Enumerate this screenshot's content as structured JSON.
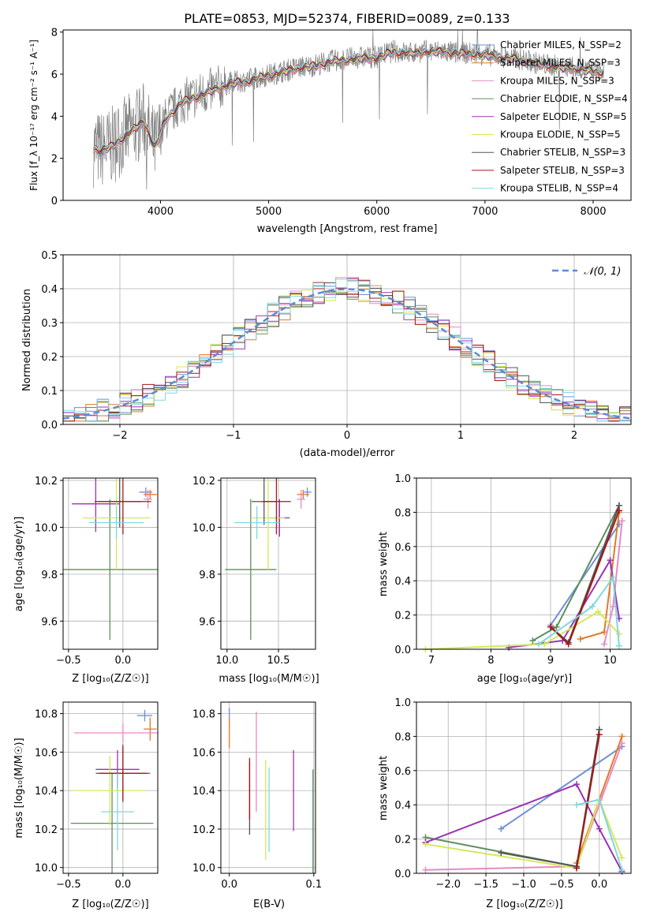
{
  "chart_data": [
    {
      "id": "spectrum",
      "type": "line",
      "title": "PLATE=0853, MJD=52374, FIBERID=0089, z=0.133",
      "xlabel": "wavelength [Angstrom, rest frame]",
      "ylabel": "Flux [f_λ 10⁻¹⁷ erg cm⁻² s⁻¹ A⁻¹]",
      "xlim": [
        3100,
        8350
      ],
      "ylim": [
        0,
        8.1
      ],
      "xticks": [
        4000,
        5000,
        6000,
        7000,
        8000
      ],
      "yticks": [
        0,
        2,
        4,
        6,
        8
      ],
      "legend_position": "upper-right",
      "observed_points": [
        [
          3380,
          2.5
        ],
        [
          3450,
          2.4
        ],
        [
          3550,
          2.6
        ],
        [
          3650,
          3.0
        ],
        [
          3750,
          3.4
        ],
        [
          3850,
          3.8
        ],
        [
          3950,
          2.5
        ],
        [
          4050,
          3.9
        ],
        [
          4200,
          4.7
        ],
        [
          4350,
          5.0
        ],
        [
          4500,
          5.3
        ],
        [
          4650,
          5.6
        ],
        [
          4800,
          5.7
        ],
        [
          4950,
          5.9
        ],
        [
          5100,
          6.1
        ],
        [
          5250,
          6.3
        ],
        [
          5400,
          6.4
        ],
        [
          5550,
          6.6
        ],
        [
          5700,
          6.7
        ],
        [
          5850,
          6.8
        ],
        [
          6000,
          6.8
        ],
        [
          6150,
          7.1
        ],
        [
          6300,
          7.0
        ],
        [
          6450,
          7.1
        ],
        [
          6600,
          7.1
        ],
        [
          6750,
          7.0
        ],
        [
          6900,
          7.0
        ],
        [
          7050,
          6.9
        ],
        [
          7200,
          6.8
        ],
        [
          7350,
          6.7
        ],
        [
          7500,
          6.5
        ],
        [
          7650,
          6.4
        ],
        [
          7800,
          6.3
        ],
        [
          7950,
          6.2
        ],
        [
          8100,
          6.1
        ]
      ],
      "legend": [
        "Chabrier MILES, N_SSP=2",
        "Salpeter MILES, N_SSP=3",
        "Kroupa MILES, N_SSP=3",
        "Chabrier ELODIE, N_SSP=4",
        "Salpeter ELODIE, N_SSP=5",
        "Kroupa ELODIE, N_SSP=5",
        "Chabrier STELIB, N_SSP=3",
        "Salpeter STELIB, N_SSP=3",
        "Kroupa STELIB, N_SSP=4"
      ]
    },
    {
      "id": "residuals",
      "type": "area",
      "xlabel": "(data-model)/error",
      "ylabel": "Normed distribution",
      "xlim": [
        -2.5,
        2.5
      ],
      "ylim": [
        0,
        0.5
      ],
      "xticks": [
        -2,
        -1,
        0,
        1,
        2
      ],
      "xtick_labels": [
        "−2",
        "−1",
        "0",
        "1",
        "2"
      ],
      "yticks": [
        0.0,
        0.1,
        0.2,
        0.3,
        0.4,
        0.5
      ],
      "ytick_labels": [
        "0.0",
        "0.1",
        "0.2",
        "0.3",
        "0.4",
        "0.5"
      ],
      "grid": true,
      "legend_label": "𝒩(0, 1)",
      "legend_position": "upper-right"
    },
    {
      "id": "age_vs_Z",
      "type": "scatter",
      "xlabel": "Z [log₁₀(Z/Z☉)]",
      "ylabel": "age  [log₁₀(age/yr)]",
      "xlim": [
        -0.55,
        0.32
      ],
      "ylim": [
        9.48,
        10.21
      ],
      "xticks": [
        -0.5,
        0.0
      ],
      "xtick_labels": [
        "−0.5",
        "0.0"
      ],
      "yticks": [
        9.6,
        9.8,
        10.0,
        10.2
      ],
      "ytick_labels": [
        "9.6",
        "9.8",
        "10.0",
        "10.2"
      ],
      "points": [
        {
          "x": 0.21,
          "y": 10.15,
          "xe": 0.06,
          "ye": 0.02
        },
        {
          "x": 0.25,
          "y": 10.14,
          "xe": 0.06,
          "ye": 0.02
        },
        {
          "x": 0.23,
          "y": 10.12,
          "xe": 0.04,
          "ye": 0.04
        },
        {
          "x": -0.12,
          "y": 9.82,
          "xe": 0.45,
          "ye": 0.3
        },
        {
          "x": -0.25,
          "y": 10.1,
          "xe": 0.22,
          "ye": 0.12
        },
        {
          "x": -0.06,
          "y": 10.04,
          "xe": 0.31,
          "ye": 0.22
        },
        {
          "x": -0.03,
          "y": 10.11,
          "xe": 0.2,
          "ye": 0.11
        },
        {
          "x": 0.0,
          "y": 10.11,
          "xe": 0.26,
          "ye": 0.14
        },
        {
          "x": -0.06,
          "y": 10.02,
          "xe": 0.25,
          "ye": 0.07
        }
      ]
    },
    {
      "id": "age_vs_mass",
      "type": "scatter",
      "xlabel": "mass [log₁₀(M/M☉)]",
      "xlim": [
        9.94,
        10.86
      ],
      "ylim": [
        9.48,
        10.21
      ],
      "xticks": [
        10.0,
        10.5
      ],
      "xtick_labels": [
        "10.0",
        "10.5"
      ],
      "yticks": [
        9.6,
        9.8,
        10.0,
        10.2
      ],
      "ytick_labels": [
        "9.6",
        "9.8",
        "10.0",
        "10.2"
      ],
      "points": [
        {
          "x": 10.78,
          "y": 10.15,
          "xe": 0.04,
          "ye": 0.02
        },
        {
          "x": 10.74,
          "y": 10.14,
          "xe": 0.06,
          "ye": 0.02
        },
        {
          "x": 10.72,
          "y": 10.12,
          "xe": 0.04,
          "ye": 0.04
        },
        {
          "x": 10.23,
          "y": 9.82,
          "xe": 0.25,
          "ye": 0.3
        },
        {
          "x": 10.51,
          "y": 10.04,
          "xe": 0.1,
          "ye": 0.08
        },
        {
          "x": 10.4,
          "y": 10.04,
          "xe": 0.16,
          "ye": 0.22
        },
        {
          "x": 10.36,
          "y": 10.11,
          "xe": 0.12,
          "ye": 0.1
        },
        {
          "x": 10.48,
          "y": 10.11,
          "xe": 0.14,
          "ye": 0.14
        },
        {
          "x": 10.29,
          "y": 10.02,
          "xe": 0.22,
          "ye": 0.07
        }
      ]
    },
    {
      "id": "weight_vs_age",
      "type": "line",
      "ylabel": "mass weight",
      "xlabel": "age  [log₁₀(age/yr)]",
      "xlim": [
        6.75,
        10.35
      ],
      "ylim": [
        0,
        1.0
      ],
      "xticks": [
        7,
        8,
        9,
        10
      ],
      "xtick_labels": [
        "7",
        "8",
        "9",
        "10"
      ],
      "yticks": [
        0.0,
        0.2,
        0.4,
        0.6,
        0.8,
        1.0
      ],
      "ytick_labels": [
        "0.0",
        "0.2",
        "0.4",
        "0.6",
        "0.8",
        "1.0"
      ],
      "grid": true
    },
    {
      "id": "mass_vs_Z",
      "type": "scatter",
      "xlabel": "Z [log₁₀(Z/Z☉)]",
      "ylabel": "mass [log₁₀(M/M☉)]",
      "xlim": [
        -0.55,
        0.32
      ],
      "ylim": [
        9.97,
        10.86
      ],
      "xticks": [
        -0.5,
        0.0
      ],
      "xtick_labels": [
        "−0.5",
        "0.0"
      ],
      "yticks": [
        10.0,
        10.2,
        10.4,
        10.6,
        10.8
      ],
      "ytick_labels": [
        "10.0",
        "10.2",
        "10.4",
        "10.6",
        "10.8"
      ]
    },
    {
      "id": "mass_vs_ebv",
      "type": "scatter",
      "xlabel": "E(B-V)",
      "xlim": [
        -0.01,
        0.102
      ],
      "ylim": [
        9.97,
        10.86
      ],
      "xticks": [
        0.0,
        0.1
      ],
      "xtick_labels": [
        "0.0",
        "0.1"
      ],
      "yticks": [
        10.0,
        10.2,
        10.4,
        10.6,
        10.8
      ],
      "ytick_labels": [
        "10.0",
        "10.2",
        "10.4",
        "10.6",
        "10.8"
      ]
    },
    {
      "id": "weight_vs_Z",
      "type": "line",
      "ylabel": "mass weight",
      "xlabel": "Z [log₁₀(Z/Z☉)]",
      "xlim": [
        -2.42,
        0.42
      ],
      "ylim": [
        0,
        1.0
      ],
      "xticks": [
        -2.0,
        -1.5,
        -1.0,
        -0.5,
        0.0
      ],
      "xtick_labels": [
        "−2.0",
        "−1.5",
        "−1.0",
        "−0.5",
        "0.0"
      ],
      "yticks": [
        0.0,
        0.2,
        0.4,
        0.6,
        0.8,
        1.0
      ],
      "ytick_labels": [
        "0.0",
        "0.2",
        "0.4",
        "0.6",
        "0.8",
        "1.0"
      ],
      "grid": true
    }
  ],
  "colors": [
    "#6f8fd6",
    "#e07b27",
    "#e78ac3",
    "#5e8f5e",
    "#9933b3",
    "#d6e85a",
    "#555555",
    "#a31818",
    "#7fd8df"
  ]
}
